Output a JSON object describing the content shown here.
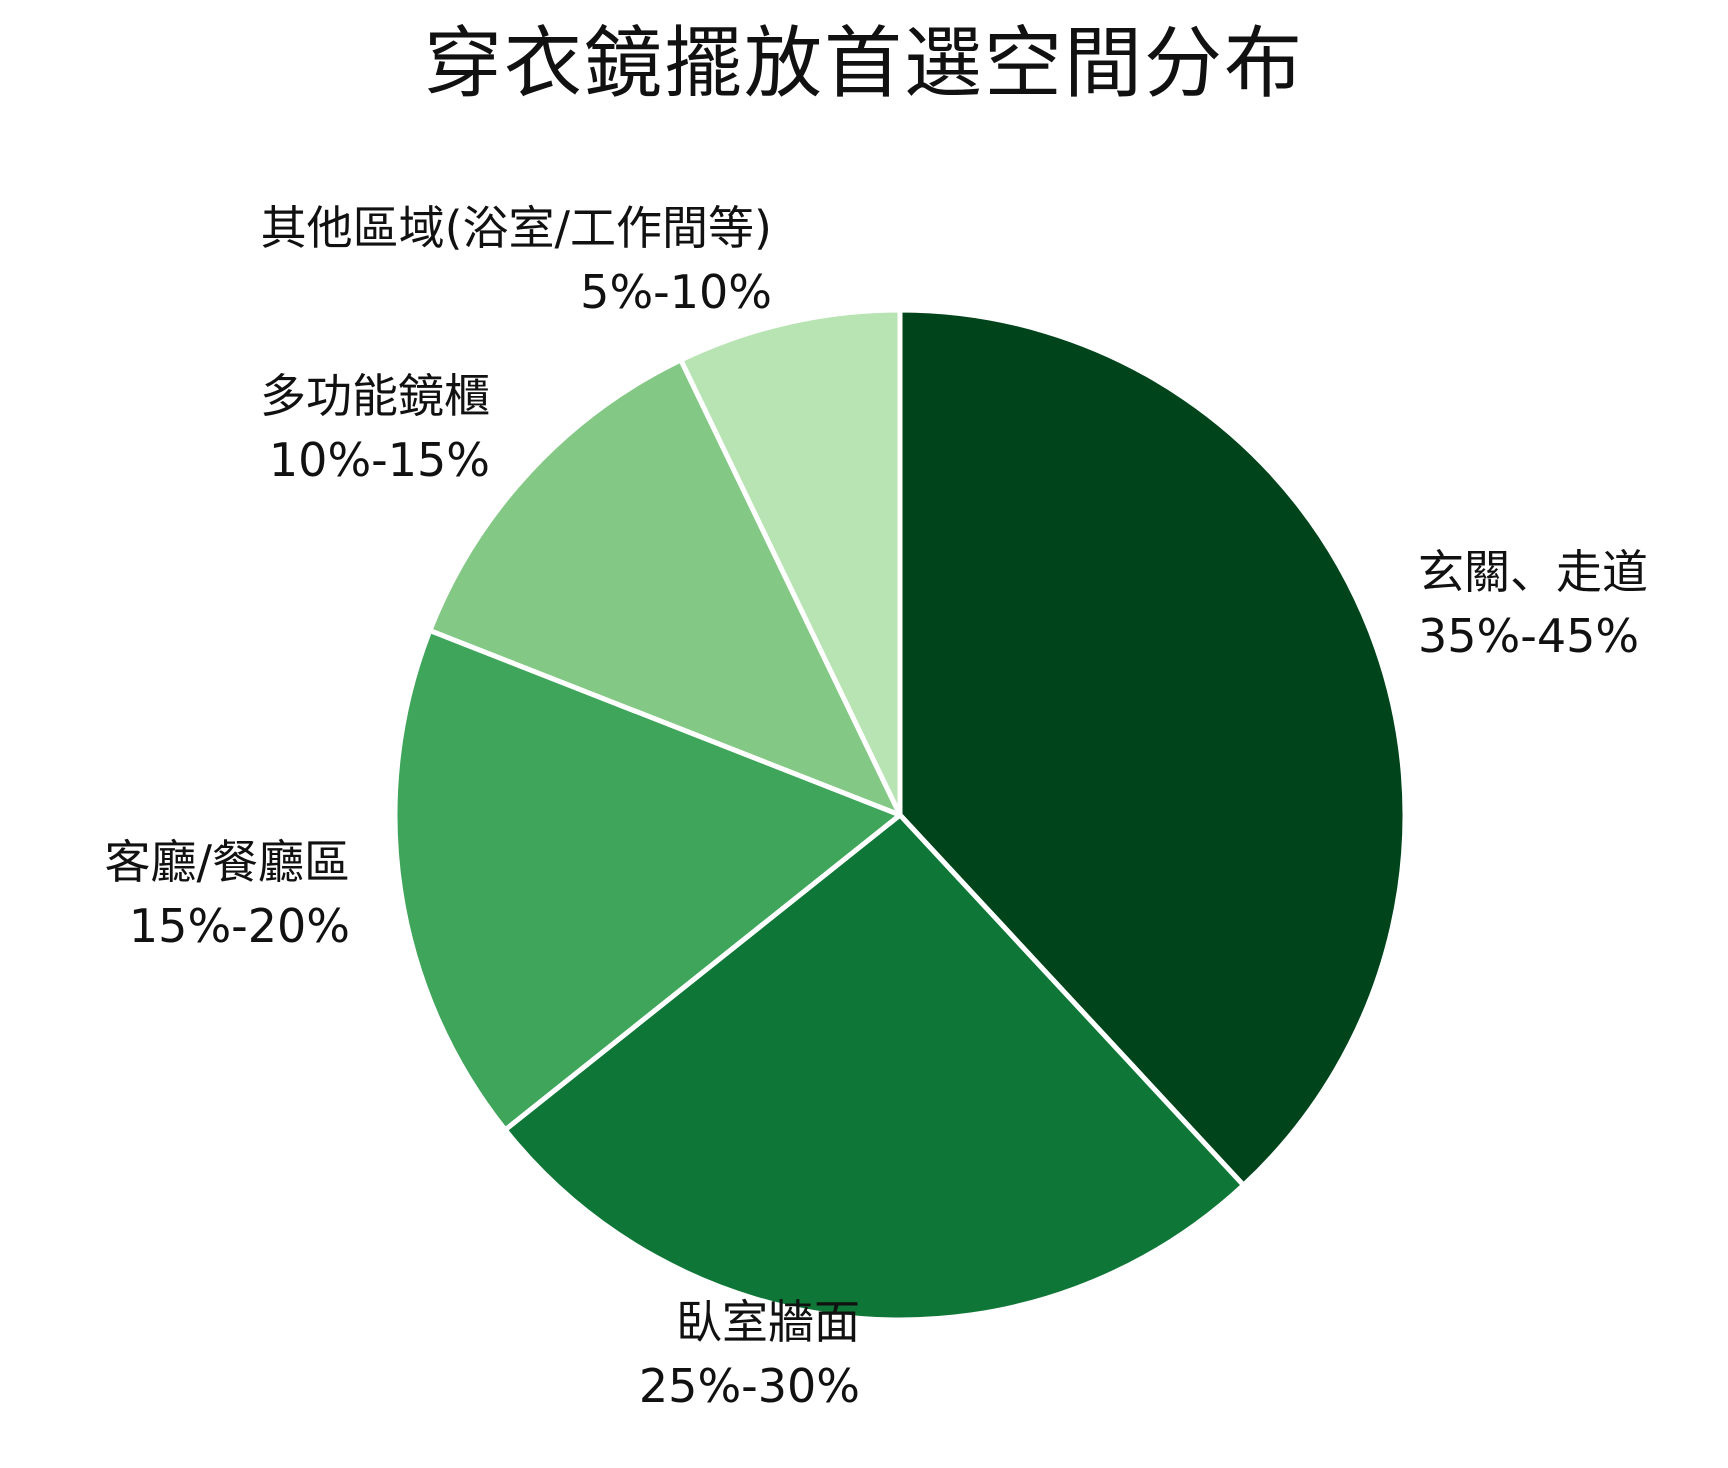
{
  "chart_data": {
    "type": "pie",
    "title": "穿衣鏡擺放首選空間分布",
    "slices": [
      {
        "name": "玄關、走道",
        "range": "35%-45%",
        "value": 40,
        "color": "#00441b"
      },
      {
        "name": "臥室牆面",
        "range": "25%-30%",
        "value": 27.5,
        "color": "#0e7636"
      },
      {
        "name": "客廳/餐廳區",
        "range": "15%-20%",
        "value": 17.5,
        "color": "#3fa55b"
      },
      {
        "name": "多功能鏡櫃",
        "range": "10%-15%",
        "value": 12.5,
        "color": "#83c884"
      },
      {
        "name": "其他區域(浴室/工作間等)",
        "range": "5%-10%",
        "value": 7.5,
        "color": "#b8e3b2"
      }
    ]
  }
}
